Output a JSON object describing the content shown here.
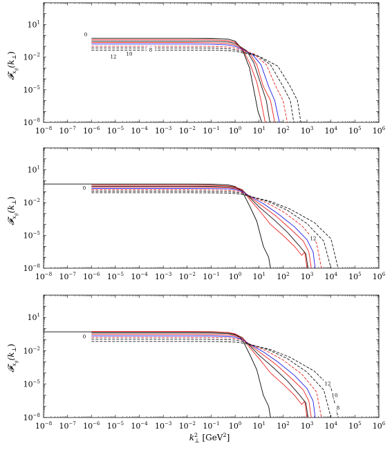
{
  "chart_data": [
    {
      "type": "line",
      "panel": "top",
      "xscale": "log",
      "yscale": "log",
      "xlim": [
        1e-08,
        1000000.0
      ],
      "ylim": [
        1e-08,
        1000
      ],
      "xlabel": "",
      "ylabel": "𝓕_{x_g}(k_⊥)",
      "ylabel_main": "𝓕",
      "ylabel_sub": "x",
      "ylabel_subsub": "g",
      "ylabel_arg": "(k",
      "ylabel_arg_sub": "⊥",
      "ylabel_arg_close": ")",
      "xticks": [
        "10^-8",
        "10^-7",
        "10^-6",
        "10^-5",
        "10^-4",
        "10^-3",
        "10^-2",
        "10^-1",
        "10^0",
        "10^1",
        "10^2",
        "10^3",
        "10^4",
        "10^5",
        "10^6"
      ],
      "yticks": [
        "10^1",
        "10^-2",
        "10^-5",
        "10^-8"
      ],
      "annotations": [
        "0",
        "10",
        "8",
        "12"
      ],
      "series": [
        {
          "color": "#000000",
          "dash": "solid",
          "x": [
            1e-06,
            0.01,
            0.1,
            0.5,
            1,
            2,
            4,
            6,
            9,
            13
          ],
          "y": [
            0.55,
            0.55,
            0.53,
            0.45,
            0.3,
            0.05,
            0.001,
            1e-05,
            1e-07,
            1e-08
          ]
        },
        {
          "color": "#e8211d",
          "dash": "solid",
          "x": [
            1e-06,
            0.01,
            0.1,
            0.5,
            1,
            2,
            4,
            8,
            12,
            18
          ],
          "y": [
            0.4,
            0.4,
            0.39,
            0.33,
            0.23,
            0.06,
            0.003,
            5e-05,
            1e-06,
            1e-08
          ]
        },
        {
          "color": "#111111",
          "dash": "solid",
          "x": [
            1e-06,
            0.01,
            0.1,
            0.5,
            1,
            3,
            6,
            12,
            20,
            28
          ],
          "y": [
            0.3,
            0.3,
            0.29,
            0.25,
            0.18,
            0.04,
            0.003,
            3e-05,
            1e-06,
            1e-08
          ]
        },
        {
          "color": "#e8211d",
          "dash": "solid",
          "x": [
            1e-06,
            0.01,
            0.1,
            0.5,
            1,
            4,
            8,
            15,
            30,
            45
          ],
          "y": [
            0.22,
            0.22,
            0.21,
            0.18,
            0.13,
            0.025,
            0.002,
            2e-05,
            1e-06,
            1e-08
          ]
        },
        {
          "color": "#1a1ae6",
          "dash": "solid",
          "x": [
            1e-06,
            0.01,
            0.1,
            0.5,
            1,
            5,
            12,
            25,
            45,
            70
          ],
          "y": [
            0.16,
            0.16,
            0.155,
            0.13,
            0.1,
            0.02,
            0.002,
            2e-05,
            1e-06,
            1e-08
          ]
        },
        {
          "color": "#e8211d",
          "dash": "dashed",
          "x": [
            1e-06,
            0.01,
            0.1,
            0.5,
            1,
            6,
            20,
            50,
            100,
            150
          ],
          "y": [
            0.1,
            0.1,
            0.097,
            0.085,
            0.07,
            0.02,
            0.002,
            2e-05,
            1e-06,
            1e-08
          ]
        },
        {
          "color": "#111111",
          "dash": "dashed",
          "x": [
            1e-06,
            0.01,
            0.1,
            0.5,
            1,
            8,
            30,
            100,
            200,
            280
          ],
          "y": [
            0.07,
            0.07,
            0.068,
            0.06,
            0.05,
            0.015,
            0.002,
            2e-05,
            1e-06,
            1e-08
          ]
        },
        {
          "color": "#111111",
          "dash": "dashed",
          "x": [
            1e-06,
            0.01,
            0.1,
            0.5,
            1,
            10,
            60,
            200,
            400,
            550
          ],
          "y": [
            0.045,
            0.045,
            0.044,
            0.04,
            0.035,
            0.012,
            0.0015,
            2e-05,
            1e-06,
            1e-08
          ]
        }
      ]
    },
    {
      "type": "line",
      "panel": "middle",
      "xscale": "log",
      "yscale": "log",
      "xlim": [
        1e-08,
        1000000.0
      ],
      "ylim": [
        1e-08,
        1000
      ],
      "xlabel": "",
      "ylabel": "𝓕_{x_g}(k_⊥)",
      "xticks": [
        "10^-8",
        "10^-7",
        "10^-6",
        "10^-5",
        "10^-4",
        "10^-3",
        "10^-2",
        "10^-1",
        "10^0",
        "10^1",
        "10^2",
        "10^3",
        "10^4",
        "10^5",
        "10^6"
      ],
      "yticks": [
        "10^1",
        "10^-2",
        "10^-5",
        "10^-8"
      ],
      "annotations": [
        "0",
        "12"
      ],
      "series": [
        {
          "color": "#000000",
          "dash": "solid",
          "x": [
            1e-08,
            1e-06,
            0.01,
            0.1,
            0.5,
            1,
            2,
            4,
            8,
            15,
            25,
            30
          ],
          "y": [
            0.5,
            0.5,
            0.5,
            0.48,
            0.42,
            0.3,
            0.1,
            0.005,
            0.0002,
            1e-06,
            1e-07,
            1e-08
          ]
        },
        {
          "color": "#e8211d",
          "dash": "solid",
          "x": [
            1e-06,
            0.01,
            0.1,
            0.5,
            1,
            2,
            4,
            10,
            30,
            100,
            300,
            600,
            800,
            1000
          ],
          "y": [
            0.4,
            0.4,
            0.38,
            0.34,
            0.27,
            0.15,
            0.02,
            0.002,
            0.0001,
            1e-05,
            1e-06,
            1.5e-07,
            3e-07,
            1e-08
          ]
        },
        {
          "color": "#111111",
          "dash": "solid",
          "x": [
            1e-06,
            0.01,
            0.1,
            0.5,
            1,
            2,
            4,
            10,
            40,
            150,
            500,
            900,
            1100
          ],
          "y": [
            0.32,
            0.32,
            0.31,
            0.28,
            0.23,
            0.14,
            0.03,
            0.004,
            0.0003,
            2e-05,
            1e-06,
            2e-07,
            1e-08
          ]
        },
        {
          "color": "#e8211d",
          "dash": "solid",
          "x": [
            1e-06,
            0.01,
            0.1,
            0.5,
            1,
            2,
            4,
            12,
            50,
            200,
            700,
            1200,
            1500
          ],
          "y": [
            0.26,
            0.26,
            0.25,
            0.23,
            0.19,
            0.12,
            0.035,
            0.006,
            0.0006,
            4e-05,
            3e-06,
            3e-07,
            1e-08
          ]
        },
        {
          "color": "#1a1ae6",
          "dash": "solid",
          "x": [
            1e-06,
            0.01,
            0.1,
            0.5,
            1,
            2,
            4,
            15,
            60,
            300,
            1000,
            1800,
            2200
          ],
          "y": [
            0.2,
            0.2,
            0.195,
            0.18,
            0.16,
            0.1,
            0.04,
            0.008,
            0.001,
            6e-05,
            4e-06,
            3e-07,
            1e-08
          ]
        },
        {
          "color": "#e8211d",
          "dash": "dashed",
          "x": [
            1e-06,
            0.01,
            0.1,
            0.5,
            1,
            2,
            4,
            20,
            100,
            600,
            2500,
            4000
          ],
          "y": [
            0.15,
            0.15,
            0.145,
            0.135,
            0.12,
            0.085,
            0.04,
            0.01,
            0.0015,
            8e-05,
            2e-06,
            1e-08
          ]
        },
        {
          "color": "#111111",
          "dash": "dashed",
          "x": [
            1e-06,
            0.01,
            0.1,
            0.5,
            1,
            2,
            4,
            25,
            150,
            1000,
            5000,
            10000
          ],
          "y": [
            0.11,
            0.11,
            0.107,
            0.1,
            0.09,
            0.07,
            0.04,
            0.012,
            0.002,
            0.00012,
            3e-06,
            1e-08
          ]
        },
        {
          "color": "#111111",
          "dash": "dashed",
          "x": [
            1e-06,
            0.01,
            0.1,
            0.5,
            1,
            2,
            4,
            30,
            200,
            2000,
            10000,
            20000
          ],
          "y": [
            0.08,
            0.08,
            0.078,
            0.074,
            0.068,
            0.055,
            0.038,
            0.013,
            0.0025,
            0.00015,
            5e-06,
            1e-08
          ]
        }
      ]
    },
    {
      "type": "line",
      "panel": "bottom",
      "xscale": "log",
      "yscale": "log",
      "xlim": [
        1e-08,
        1000000.0
      ],
      "ylim": [
        1e-08,
        1000
      ],
      "xlabel": "k_⊥^2 [GeV^2]",
      "xlabel_k": "k",
      "xlabel_sub": "⊥",
      "xlabel_sup": "2",
      "xlabel_unit_open": " [GeV",
      "xlabel_unit_sup": "2",
      "xlabel_unit_close": "]",
      "ylabel": "𝓕_{x_g}(k_⊥)",
      "xticks": [
        "10^-8",
        "10^-7",
        "10^-6",
        "10^-5",
        "10^-4",
        "10^-3",
        "10^-2",
        "10^-1",
        "10^0",
        "10^1",
        "10^2",
        "10^3",
        "10^4",
        "10^5",
        "10^6"
      ],
      "yticks": [
        "10^1",
        "10^-2",
        "10^-5",
        "10^-8"
      ],
      "annotations": [
        "0",
        "12",
        "10",
        "8"
      ],
      "series": [
        {
          "color": "#000000",
          "dash": "solid",
          "x": [
            1e-08,
            1e-06,
            0.01,
            0.1,
            0.5,
            1,
            2,
            4,
            8,
            15,
            25,
            30
          ],
          "y": [
            0.5,
            0.5,
            0.5,
            0.48,
            0.42,
            0.3,
            0.1,
            0.005,
            0.0002,
            1e-06,
            1e-07,
            1e-08
          ]
        },
        {
          "color": "#e8211d",
          "dash": "solid",
          "x": [
            1e-06,
            0.01,
            0.1,
            0.5,
            1,
            2,
            4,
            10,
            30,
            100,
            300,
            600,
            800,
            1000
          ],
          "y": [
            0.55,
            0.55,
            0.52,
            0.45,
            0.33,
            0.15,
            0.02,
            0.002,
            0.0001,
            1e-05,
            1e-06,
            1.5e-07,
            3e-07,
            1e-08
          ]
        },
        {
          "color": "#111111",
          "dash": "solid",
          "x": [
            1e-06,
            0.01,
            0.1,
            0.5,
            1,
            2,
            4,
            10,
            40,
            150,
            500,
            900,
            1100
          ],
          "y": [
            0.4,
            0.4,
            0.39,
            0.35,
            0.27,
            0.15,
            0.03,
            0.004,
            0.0003,
            2e-05,
            1e-06,
            2e-07,
            1e-08
          ]
        },
        {
          "color": "#e8211d",
          "dash": "solid",
          "x": [
            1e-06,
            0.01,
            0.1,
            0.5,
            1,
            2,
            4,
            12,
            50,
            200,
            700,
            1200,
            1500
          ],
          "y": [
            0.3,
            0.3,
            0.29,
            0.27,
            0.22,
            0.13,
            0.035,
            0.006,
            0.0006,
            4e-05,
            3e-06,
            3e-07,
            1e-08
          ]
        },
        {
          "color": "#1a1ae6",
          "dash": "solid",
          "x": [
            1e-06,
            0.01,
            0.1,
            0.5,
            1,
            2,
            4,
            15,
            60,
            300,
            1000,
            1800,
            2200
          ],
          "y": [
            0.22,
            0.22,
            0.215,
            0.2,
            0.17,
            0.1,
            0.04,
            0.008,
            0.001,
            6e-05,
            4e-06,
            3e-07,
            1e-08
          ]
        },
        {
          "color": "#e8211d",
          "dash": "dashed",
          "x": [
            1e-06,
            0.01,
            0.1,
            0.5,
            1,
            2,
            4,
            20,
            100,
            600,
            2500,
            4000
          ],
          "y": [
            0.16,
            0.16,
            0.155,
            0.145,
            0.13,
            0.09,
            0.04,
            0.01,
            0.0015,
            8e-05,
            2e-06,
            1e-08
          ]
        },
        {
          "color": "#111111",
          "dash": "dashed",
          "x": [
            1e-06,
            0.01,
            0.1,
            0.5,
            1,
            2,
            4,
            25,
            150,
            1000,
            5000,
            10000
          ],
          "y": [
            0.11,
            0.11,
            0.107,
            0.1,
            0.09,
            0.07,
            0.04,
            0.012,
            0.002,
            0.00012,
            3e-06,
            1e-08
          ]
        },
        {
          "color": "#111111",
          "dash": "dashed",
          "x": [
            1e-06,
            0.01,
            0.1,
            0.5,
            1,
            2,
            4,
            30,
            200,
            2000,
            10000,
            20000
          ],
          "y": [
            0.07,
            0.07,
            0.068,
            0.065,
            0.06,
            0.05,
            0.036,
            0.013,
            0.0025,
            0.00015,
            5e-06,
            1e-08
          ]
        }
      ]
    }
  ]
}
